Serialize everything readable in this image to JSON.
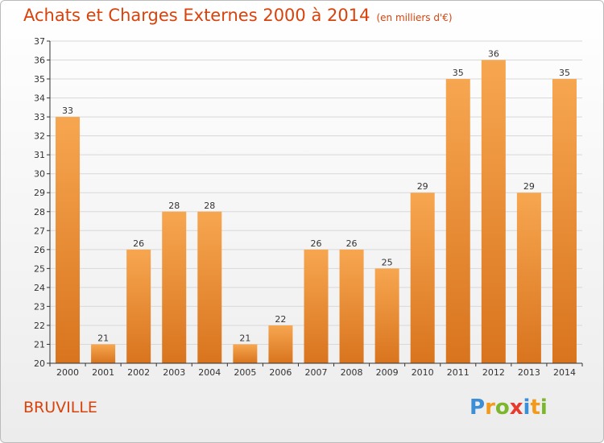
{
  "header": {
    "title": "Achats et Charges Externes 2000 à 2014",
    "unit": "(en milliers d'€)"
  },
  "footer": {
    "commune": "BRUVILLE",
    "brand_letters": [
      {
        "ch": "P",
        "color": "#3a8fd6"
      },
      {
        "ch": "r",
        "color": "#f39a1c"
      },
      {
        "ch": "o",
        "color": "#7bb62d"
      },
      {
        "ch": "x",
        "color": "#e63b2e"
      },
      {
        "ch": "i",
        "color": "#3a8fd6"
      },
      {
        "ch": "t",
        "color": "#f39a1c"
      },
      {
        "ch": "i",
        "color": "#7bb62d"
      }
    ]
  },
  "colors": {
    "bar_light": "#f7a650",
    "bar_dark": "#d9741e",
    "grid": "#d8d8d8",
    "axis": "#333333",
    "title": "#d9420b"
  },
  "chart_data": {
    "type": "bar",
    "title": "Achats et Charges Externes 2000 à 2014",
    "subtitle": "(en milliers d'€)",
    "categories": [
      "2000",
      "2001",
      "2002",
      "2003",
      "2004",
      "2005",
      "2006",
      "2007",
      "2008",
      "2009",
      "2010",
      "2011",
      "2012",
      "2013",
      "2014"
    ],
    "values": [
      33,
      21,
      26,
      28,
      28,
      21,
      22,
      26,
      26,
      25,
      29,
      35,
      36,
      29,
      35
    ],
    "xlabel": "",
    "ylabel": "",
    "ylim": [
      20,
      37
    ],
    "yticks": [
      20,
      21,
      22,
      23,
      24,
      25,
      26,
      27,
      28,
      29,
      30,
      31,
      32,
      33,
      34,
      35,
      36,
      37
    ],
    "grid": true,
    "data_labels": true
  }
}
